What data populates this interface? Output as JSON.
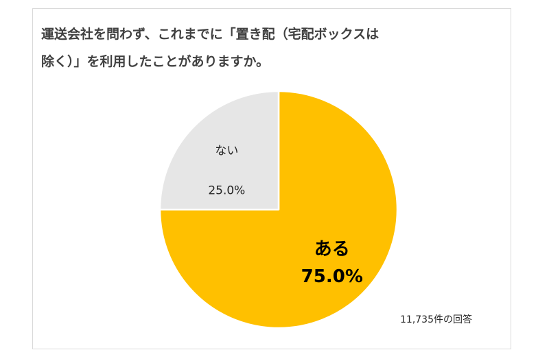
{
  "title_line1": "運送会社を問わず、これまでに「置き配（宅配ボックスは",
  "title_line2": "除く）」を利用したことがありますか。",
  "response_count": "11,735件の回答",
  "colors": {
    "aru": "#ffc000",
    "nai": "#e6e6e6",
    "separator": "#ffffff"
  },
  "chart_data": {
    "type": "pie",
    "title": "運送会社を問わず、これまでに「置き配（宅配ボックスは除く）」を利用したことがありますか。",
    "labels": [
      "ある",
      "ない"
    ],
    "values": [
      75.0,
      25.0
    ],
    "value_labels": [
      "75.0%",
      "25.0%"
    ],
    "start_angle_deg": 0,
    "direction": "clockwise",
    "legend": "none"
  }
}
